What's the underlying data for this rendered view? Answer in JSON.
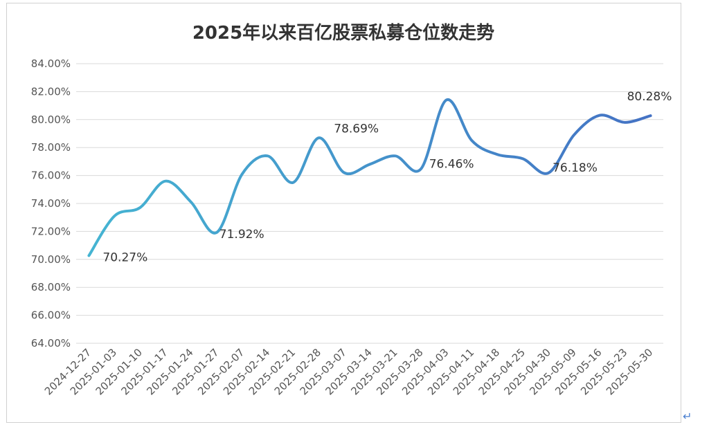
{
  "chart_data": {
    "type": "line",
    "title": "2025年以来百亿股票私募仓位数走势",
    "xlabel": "",
    "ylabel": "",
    "ylim": [
      64,
      84
    ],
    "y_ticks": [
      "64.00%",
      "66.00%",
      "68.00%",
      "70.00%",
      "72.00%",
      "74.00%",
      "76.00%",
      "78.00%",
      "80.00%",
      "82.00%",
      "84.00%"
    ],
    "y_tick_values": [
      64,
      66,
      68,
      70,
      72,
      74,
      76,
      78,
      80,
      82,
      84
    ],
    "grid": true,
    "legend": "none",
    "categories": [
      "2024-12-27",
      "2025-01-03",
      "2025-01-10",
      "2025-01-17",
      "2025-01-24",
      "2025-01-27",
      "2025-02-07",
      "2025-02-14",
      "2025-02-21",
      "2025-02-28",
      "2025-03-07",
      "2025-03-14",
      "2025-03-21",
      "2025-03-28",
      "2025-04-03",
      "2025-04-11",
      "2025-04-18",
      "2025-04-25",
      "2025-04-30",
      "2025-05-09",
      "2025-05-16",
      "2025-05-23",
      "2025-05-30"
    ],
    "series": [
      {
        "values": [
          70.27,
          73.1,
          73.7,
          75.6,
          74.1,
          71.92,
          76.1,
          77.4,
          75.5,
          78.69,
          76.2,
          76.8,
          77.4,
          76.46,
          81.4,
          78.5,
          77.5,
          77.2,
          76.18,
          78.9,
          80.3,
          79.8,
          80.28
        ],
        "color_start": "#45b4d2",
        "color_end": "#4472c4"
      }
    ],
    "data_labels": [
      {
        "index": 0,
        "text": "70.27%"
      },
      {
        "index": 5,
        "text": "71.92%"
      },
      {
        "index": 9,
        "text": "78.69%"
      },
      {
        "index": 13,
        "text": "76.46%"
      },
      {
        "index": 18,
        "text": "76.18%"
      },
      {
        "index": 22,
        "text": "80.28%"
      }
    ]
  },
  "footer": {
    "return_mark": "↵"
  }
}
